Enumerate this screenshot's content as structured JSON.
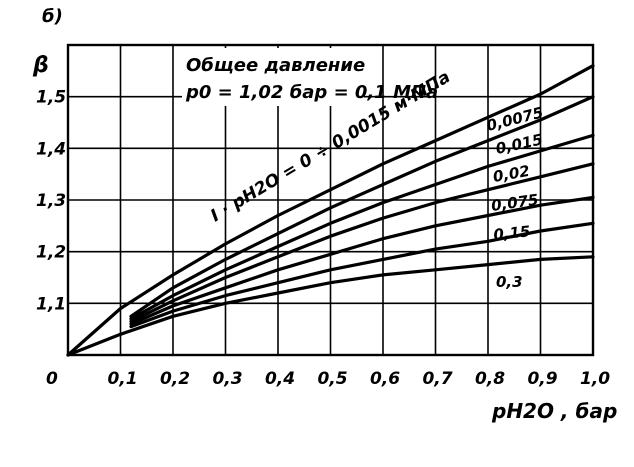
{
  "chart_data": {
    "type": "line",
    "panel_label": "б)",
    "title_line1": "Общее давление",
    "title_line2": "p0 = 1,02 бар = 0,1 МПа",
    "ylabel": "β",
    "xlabel": "pH2O , бар",
    "xlim": [
      0,
      1.0
    ],
    "ylim": [
      1.0,
      1.6
    ],
    "x_ticks": [
      "0",
      "0,1",
      "0,2",
      "0,3",
      "0,4",
      "0,5",
      "0,6",
      "0,7",
      "0,8",
      "0,9",
      "1,0"
    ],
    "y_ticks": [
      "1,1",
      "1,2",
      "1,3",
      "1,4",
      "1,5"
    ],
    "grid": true,
    "series": [
      {
        "name": "I · pH2O = 0 ÷ 0,0015 м·МПа",
        "x": [
          0.0,
          0.1,
          0.2,
          0.3,
          0.4,
          0.5,
          0.6,
          0.7,
          0.8,
          0.9,
          1.0
        ],
        "y": [
          1.0,
          1.09,
          1.155,
          1.215,
          1.27,
          1.32,
          1.37,
          1.415,
          1.46,
          1.505,
          1.56
        ]
      },
      {
        "name": "0,0075",
        "x": [
          0.12,
          0.2,
          0.3,
          0.4,
          0.5,
          0.6,
          0.7,
          0.8,
          0.9,
          1.0
        ],
        "y": [
          1.075,
          1.13,
          1.185,
          1.235,
          1.285,
          1.33,
          1.375,
          1.415,
          1.455,
          1.5
        ]
      },
      {
        "name": "0,015",
        "x": [
          0.12,
          0.2,
          0.3,
          0.4,
          0.5,
          0.6,
          0.7,
          0.8,
          0.9,
          1.0
        ],
        "y": [
          1.07,
          1.115,
          1.165,
          1.21,
          1.255,
          1.295,
          1.33,
          1.365,
          1.395,
          1.425
        ]
      },
      {
        "name": "0,02",
        "x": [
          0.12,
          0.2,
          0.3,
          0.4,
          0.5,
          0.6,
          0.7,
          0.8,
          0.9,
          1.0
        ],
        "y": [
          1.065,
          1.105,
          1.15,
          1.19,
          1.23,
          1.265,
          1.295,
          1.32,
          1.345,
          1.37
        ]
      },
      {
        "name": "0,075",
        "x": [
          0.12,
          0.2,
          0.3,
          0.4,
          0.5,
          0.6,
          0.7,
          0.8,
          0.9,
          1.0
        ],
        "y": [
          1.06,
          1.095,
          1.13,
          1.165,
          1.195,
          1.225,
          1.25,
          1.27,
          1.29,
          1.305
        ]
      },
      {
        "name": "0,15",
        "x": [
          0.12,
          0.2,
          0.3,
          0.4,
          0.5,
          0.6,
          0.7,
          0.8,
          0.9,
          1.0
        ],
        "y": [
          1.055,
          1.085,
          1.115,
          1.14,
          1.165,
          1.185,
          1.205,
          1.22,
          1.24,
          1.255
        ]
      },
      {
        "name": "0,3",
        "x": [
          0.0,
          0.1,
          0.2,
          0.3,
          0.4,
          0.5,
          0.6,
          0.7,
          0.8,
          0.9,
          1.0
        ],
        "y": [
          1.0,
          1.04,
          1.075,
          1.1,
          1.12,
          1.14,
          1.155,
          1.165,
          1.175,
          1.185,
          1.19
        ]
      }
    ],
    "series_label_texts": [
      "0,0075",
      "0,015",
      "0,02",
      "0,075",
      "0,15",
      "0,3"
    ]
  }
}
